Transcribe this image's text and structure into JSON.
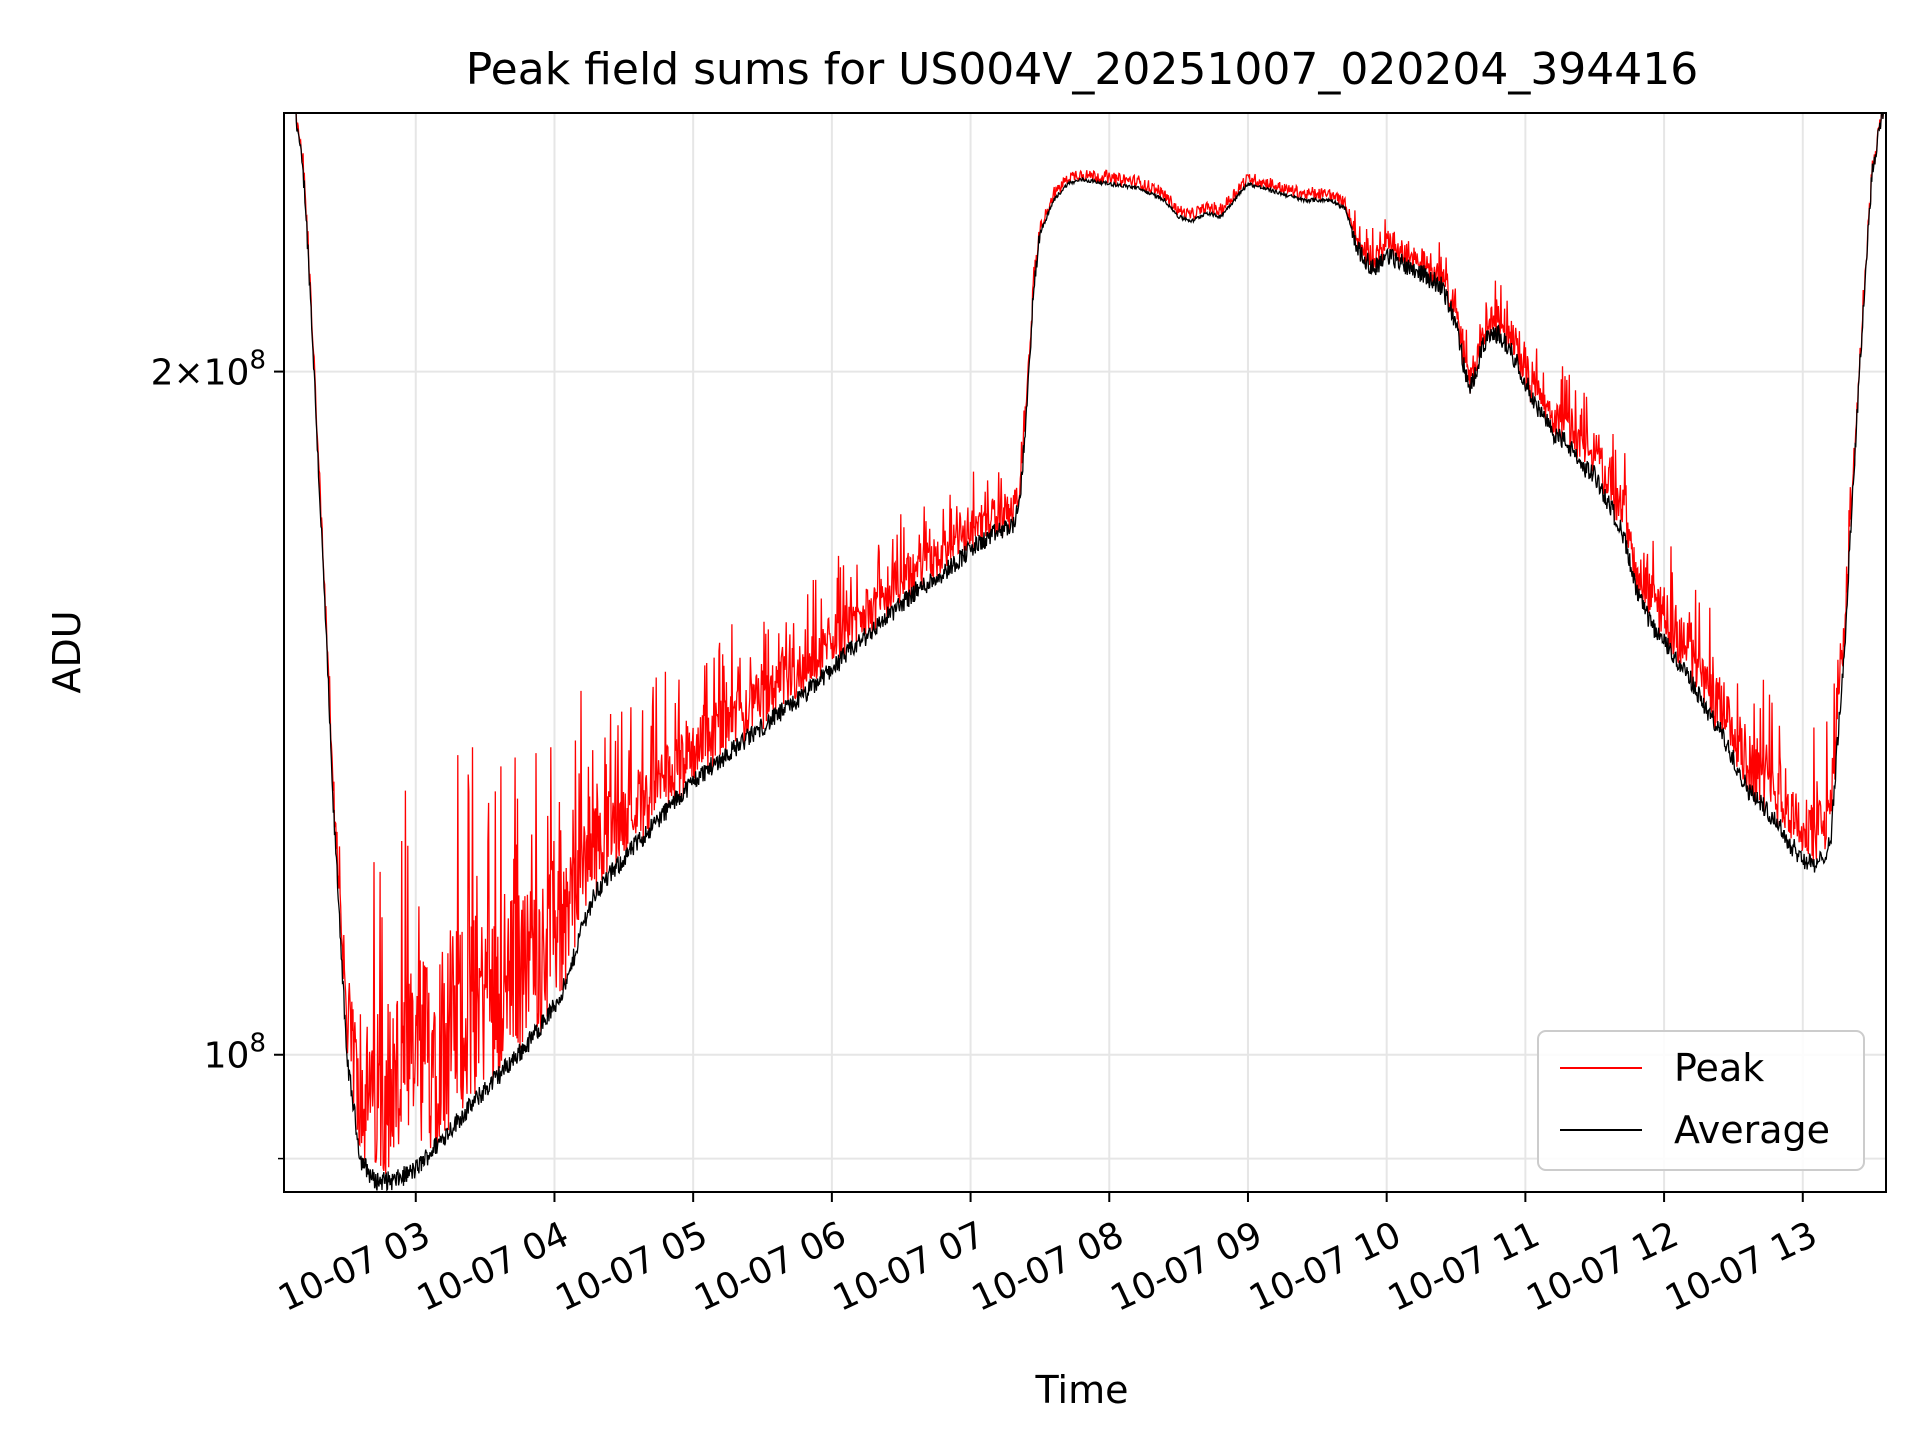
{
  "chart_data": {
    "type": "line",
    "title": "Peak field sums for US004V_20251007_020204_394416",
    "xlabel": "Time",
    "ylabel": "ADU",
    "yscale": "log",
    "ylim": [
      87000000,
      260000000
    ],
    "xlim": [
      2.05,
      13.6
    ],
    "grid": true,
    "legend_position": "lower-right",
    "x_ticks": [
      {
        "value": 3,
        "label": "10-07 03"
      },
      {
        "value": 4,
        "label": "10-07 04"
      },
      {
        "value": 5,
        "label": "10-07 05"
      },
      {
        "value": 6,
        "label": "10-07 06"
      },
      {
        "value": 7,
        "label": "10-07 07"
      },
      {
        "value": 8,
        "label": "10-07 08"
      },
      {
        "value": 9,
        "label": "10-07 09"
      },
      {
        "value": 10,
        "label": "10-07 10"
      },
      {
        "value": 11,
        "label": "10-07 11"
      },
      {
        "value": 12,
        "label": "10-07 12"
      },
      {
        "value": 13,
        "label": "10-07 13"
      }
    ],
    "y_ticks": [
      {
        "value": 100000000,
        "mantissa": "",
        "exponent": "8",
        "label": "10^8"
      },
      {
        "value": 200000000,
        "mantissa": "2×",
        "exponent": "8",
        "label": "2×10^8"
      }
    ],
    "y_minor_ticks": [
      90000000
    ],
    "colors": {
      "peak": "#ff0000",
      "average": "#000000",
      "grid": "#e6e6e6",
      "frame": "#000000"
    },
    "series": [
      {
        "name": "Average",
        "color": "#000000",
        "points": [
          [
            2.05,
            265000000
          ],
          [
            2.12,
            265000000
          ],
          [
            2.2,
            240000000
          ],
          [
            2.3,
            180000000
          ],
          [
            2.4,
            130000000
          ],
          [
            2.5,
            100000000
          ],
          [
            2.6,
            90000000
          ],
          [
            2.7,
            88000000
          ],
          [
            2.85,
            88000000
          ],
          [
            3.0,
            89000000
          ],
          [
            3.2,
            92000000
          ],
          [
            3.4,
            95000000
          ],
          [
            3.6,
            98000000
          ],
          [
            3.8,
            101000000
          ],
          [
            4.0,
            105000000
          ],
          [
            4.1,
            108000000
          ],
          [
            4.2,
            114000000
          ],
          [
            4.3,
            118000000
          ],
          [
            4.4,
            120000000
          ],
          [
            4.6,
            124000000
          ],
          [
            4.8,
            128000000
          ],
          [
            5.0,
            132000000
          ],
          [
            5.2,
            135000000
          ],
          [
            5.4,
            138000000
          ],
          [
            5.6,
            141000000
          ],
          [
            5.8,
            144000000
          ],
          [
            6.0,
            148000000
          ],
          [
            6.2,
            152000000
          ],
          [
            6.4,
            156000000
          ],
          [
            6.6,
            160000000
          ],
          [
            6.8,
            163000000
          ],
          [
            7.0,
            167000000
          ],
          [
            7.2,
            170000000
          ],
          [
            7.3,
            171000000
          ],
          [
            7.35,
            174000000
          ],
          [
            7.4,
            190000000
          ],
          [
            7.45,
            215000000
          ],
          [
            7.5,
            230000000
          ],
          [
            7.6,
            238000000
          ],
          [
            7.7,
            242000000
          ],
          [
            7.8,
            243000000
          ],
          [
            8.0,
            242000000
          ],
          [
            8.2,
            241000000
          ],
          [
            8.4,
            238000000
          ],
          [
            8.5,
            234000000
          ],
          [
            8.6,
            233000000
          ],
          [
            8.7,
            235000000
          ],
          [
            8.8,
            234000000
          ],
          [
            8.9,
            238000000
          ],
          [
            9.0,
            242000000
          ],
          [
            9.2,
            240000000
          ],
          [
            9.4,
            238000000
          ],
          [
            9.6,
            238000000
          ],
          [
            9.7,
            236000000
          ],
          [
            9.8,
            226000000
          ],
          [
            9.9,
            222000000
          ],
          [
            10.0,
            225000000
          ],
          [
            10.2,
            222000000
          ],
          [
            10.4,
            218000000
          ],
          [
            10.5,
            210000000
          ],
          [
            10.55,
            202000000
          ],
          [
            10.6,
            196000000
          ],
          [
            10.7,
            206000000
          ],
          [
            10.8,
            208000000
          ],
          [
            10.9,
            204000000
          ],
          [
            11.0,
            198000000
          ],
          [
            11.1,
            192000000
          ],
          [
            11.2,
            188000000
          ],
          [
            11.3,
            186000000
          ],
          [
            11.4,
            182000000
          ],
          [
            11.5,
            180000000
          ],
          [
            11.6,
            175000000
          ],
          [
            11.7,
            170000000
          ],
          [
            11.8,
            160000000
          ],
          [
            11.9,
            155000000
          ],
          [
            12.0,
            152000000
          ],
          [
            12.1,
            149000000
          ],
          [
            12.2,
            146000000
          ],
          [
            12.3,
            142000000
          ],
          [
            12.4,
            139000000
          ],
          [
            12.5,
            135000000
          ],
          [
            12.6,
            131000000
          ],
          [
            12.7,
            129000000
          ],
          [
            12.8,
            127000000
          ],
          [
            12.9,
            124000000
          ],
          [
            13.0,
            122000000
          ],
          [
            13.1,
            121000000
          ],
          [
            13.2,
            124000000
          ],
          [
            13.3,
            150000000
          ],
          [
            13.4,
            195000000
          ],
          [
            13.5,
            245000000
          ],
          [
            13.6,
            265000000
          ]
        ]
      },
      {
        "name": "Peak",
        "color": "#ff0000",
        "envelope_above_average": [
          [
            2.05,
            1.0
          ],
          [
            2.4,
            1.05
          ],
          [
            2.6,
            1.25
          ],
          [
            2.8,
            1.38
          ],
          [
            3.0,
            1.42
          ],
          [
            3.2,
            1.42
          ],
          [
            3.4,
            1.38
          ],
          [
            3.6,
            1.35
          ],
          [
            3.8,
            1.32
          ],
          [
            4.0,
            1.28
          ],
          [
            4.2,
            1.22
          ],
          [
            4.5,
            1.15
          ],
          [
            5.0,
            1.12
          ],
          [
            5.5,
            1.1
          ],
          [
            6.0,
            1.09
          ],
          [
            6.5,
            1.08
          ],
          [
            7.0,
            1.07
          ],
          [
            7.4,
            1.04
          ],
          [
            7.5,
            1.01
          ],
          [
            9.7,
            1.01
          ],
          [
            9.8,
            1.03
          ],
          [
            10.5,
            1.04
          ],
          [
            11.0,
            1.05
          ],
          [
            11.5,
            1.07
          ],
          [
            12.0,
            1.09
          ],
          [
            12.5,
            1.11
          ],
          [
            13.0,
            1.12
          ],
          [
            13.2,
            1.12
          ],
          [
            13.4,
            1.02
          ],
          [
            13.6,
            1.0
          ]
        ]
      }
    ]
  }
}
